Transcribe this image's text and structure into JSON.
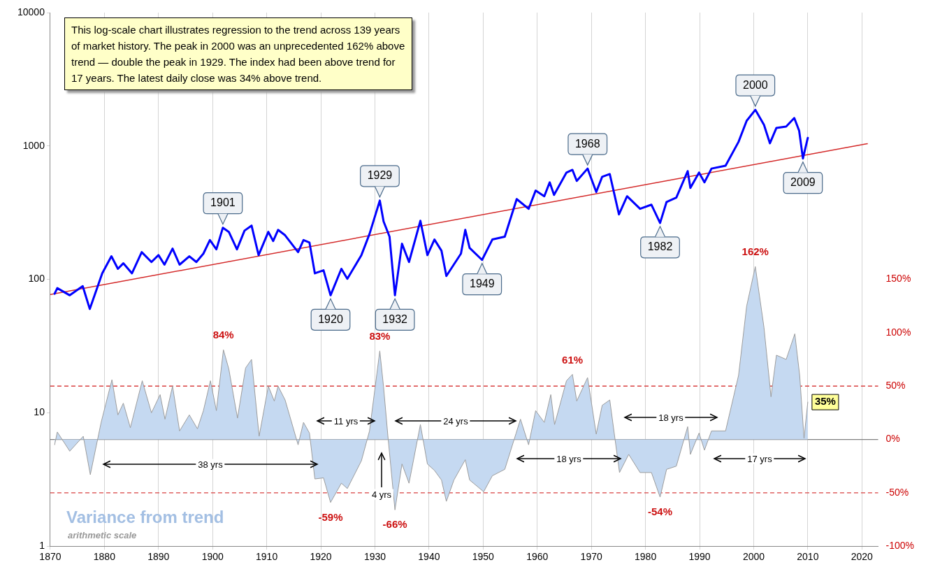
{
  "chart_data": {
    "type": "line",
    "annotations": [
      "This log-scale chart illustrates regression to the trend across 139 years of market history. The peak in 2000 was an unprecedented 162% above trend — double the peak in 1929.  The index had been above trend for 17 years. The latest daily close was 34% above trend.",
      "Variance from trend",
      "arithmetic scale",
      "38 yrs",
      "11 yrs",
      "24 yrs",
      "4 yrs",
      "18 yrs",
      "18 yrs",
      "17 yrs",
      {
        "text": "1901",
        "x": 1901.9,
        "y": 244
      },
      {
        "text": "1920",
        "x": 1921.8,
        "y": 76
      },
      {
        "text": "1929",
        "x": 1930.9,
        "y": 390
      },
      {
        "text": "1932",
        "x": 1933.7,
        "y": 76
      },
      {
        "text": "1949",
        "x": 1949.8,
        "y": 140
      },
      {
        "text": "1968",
        "x": 1969.3,
        "y": 677
      },
      {
        "text": "1982",
        "x": 1982.7,
        "y": 265
      },
      {
        "text": "2000",
        "x": 2000.3,
        "y": 1866
      },
      {
        "text": "2009",
        "x": 2009.1,
        "y": 806
      }
    ],
    "xlim": [
      1870,
      2023
    ],
    "xticks": [
      1870,
      1880,
      1890,
      1900,
      1910,
      1920,
      1930,
      1940,
      1950,
      1960,
      1970,
      1980,
      1990,
      2000,
      2010,
      2020
    ],
    "ylim": [
      1,
      10000
    ],
    "yticks": [
      1,
      10,
      100,
      1000,
      10000
    ],
    "log": "y",
    "y2lim": [
      -100,
      400
    ],
    "y2ticks": [
      {
        "value": -100,
        "label": "-100%"
      },
      {
        "value": -50,
        "label": "-50%"
      },
      {
        "value": 0,
        "label": "0%"
      },
      {
        "value": 50,
        "label": "50%"
      },
      {
        "value": 100,
        "label": "100%"
      },
      {
        "value": 150,
        "label": "150%"
      }
    ],
    "grid": "x",
    "marker": "none",
    "ref_lines": [
      {
        "axis": "y2",
        "value": 0,
        "color": "#808080",
        "line_style": "solid"
      },
      {
        "axis": "y2",
        "value": 50,
        "color": "#d94040",
        "line_style": "dashed"
      },
      {
        "axis": "y2",
        "value": -50,
        "color": "#d94040",
        "line_style": "dashed"
      }
    ],
    "series": [
      {
        "color": "#0000ff",
        "x": [
          1870.8,
          1871.3,
          1873.6,
          1876,
          1877.3,
          1879.6,
          1881.3,
          1882.5,
          1883.5,
          1885.1,
          1886.9,
          1888.7,
          1890,
          1891.1,
          1892.6,
          1893.9,
          1895.7,
          1897,
          1898.3,
          1899.5,
          1900.7,
          1901.9,
          1903,
          1904.5,
          1905.9,
          1907.2,
          1908.5,
          1910.3,
          1911.2,
          1912.1,
          1913.4,
          1915.8,
          1916.8,
          1917.9,
          1918.9,
          1920.5,
          1921.8,
          1923.8,
          1924.9,
          1927.5,
          1929,
          1930.9,
          1931.6,
          1932.7,
          1933.7,
          1935,
          1936.3,
          1938.4,
          1939.7,
          1941,
          1942.3,
          1943.2,
          1945.9,
          1946.7,
          1947.5,
          1949.8,
          1951.7,
          1954,
          1956.2,
          1958.4,
          1959.7,
          1961.3,
          1962.3,
          1963.1,
          1965.4,
          1966.5,
          1967.3,
          1969.3,
          1970.9,
          1972,
          1973.4,
          1975.1,
          1976.6,
          1979,
          1981.1,
          1982.7,
          1983.9,
          1985.7,
          1987.8,
          1988.3,
          1989.9,
          1990.9,
          1992.2,
          1994.8,
          1997.2,
          1998.7,
          2000.3,
          2001.9,
          2003,
          2004.2,
          2006,
          2007.5,
          2008.4,
          2009.1,
          2010
        ],
        "values": [
          78,
          86,
          76,
          89,
          60,
          111,
          149,
          120,
          132,
          111,
          160,
          135,
          152,
          129,
          170,
          129,
          149,
          135,
          156,
          197,
          168,
          244,
          227,
          168,
          232,
          253,
          152,
          227,
          194,
          235,
          214,
          160,
          197,
          189,
          111,
          117,
          76,
          120,
          101,
          152,
          219,
          390,
          272,
          209,
          76,
          185,
          135,
          275,
          152,
          199,
          164,
          106,
          156,
          235,
          172,
          140,
          199,
          209,
          400,
          338,
          463,
          420,
          534,
          430,
          632,
          662,
          547,
          677,
          452,
          588,
          616,
          307,
          420,
          338,
          363,
          265,
          381,
          410,
          648,
          485,
          632,
          534,
          677,
          712,
          1074,
          1545,
          1866,
          1440,
          1048,
          1367,
          1400,
          1620,
          1300,
          806,
          1150
        ]
      },
      {
        "color": "#d42a2a",
        "x": [
          1870,
          2021
        ],
        "values": [
          77,
          1040
        ]
      },
      {
        "type": "area",
        "axis": "y2",
        "color": "#c5d9f1",
        "x": [
          1870.8,
          1871.3,
          1873.6,
          1876.1,
          1877.4,
          1879.4,
          1881.4,
          1882.5,
          1883.5,
          1884.8,
          1887,
          1888.7,
          1890.3,
          1891.2,
          1892.6,
          1893.9,
          1895.7,
          1897.2,
          1898.3,
          1899.6,
          1900.7,
          1902,
          1903,
          1904.6,
          1906.1,
          1907.2,
          1908.6,
          1910.3,
          1911.4,
          1912.1,
          1913.4,
          1915.8,
          1916.8,
          1917.9,
          1918.9,
          1920.5,
          1921.8,
          1923.8,
          1924.9,
          1927.5,
          1929,
          1930.9,
          1931.6,
          1932.4,
          1933.7,
          1935,
          1936.3,
          1938.4,
          1939.7,
          1941,
          1942.3,
          1943.2,
          1944.6,
          1946.7,
          1947.5,
          1950.1,
          1951.7,
          1954,
          1956.1,
          1956.9,
          1958.4,
          1959.7,
          1961.3,
          1962.5,
          1963.2,
          1965.4,
          1966.5,
          1967.3,
          1969.3,
          1970.9,
          1972,
          1973.4,
          1975.2,
          1976.9,
          1979,
          1981.1,
          1982.7,
          1983.9,
          1985.7,
          1987.8,
          1988.3,
          1989.9,
          1990.9,
          1992.2,
          1994.8,
          1997.2,
          1998.7,
          2000.3,
          2001.9,
          2003.2,
          2004.2,
          2006,
          2007.6,
          2008.5,
          2009.3,
          2010
        ],
        "values": [
          -5,
          7,
          -11,
          3,
          -33,
          16,
          56,
          23,
          34,
          11,
          55,
          25,
          42,
          19,
          50,
          8,
          23,
          10,
          27,
          55,
          27,
          84,
          66,
          20,
          67,
          75,
          3,
          50,
          36,
          50,
          37,
          -5,
          16,
          6,
          -37,
          -36,
          -59,
          -41,
          -46,
          -20,
          8,
          83,
          49,
          3,
          -66,
          -23,
          -41,
          14,
          -23,
          -29,
          -38,
          -58,
          -38,
          -19,
          -38,
          -49,
          -34,
          -28,
          6,
          19,
          -5,
          27,
          16,
          42,
          14,
          55,
          61,
          36,
          58,
          5,
          32,
          37,
          -31,
          -14,
          -31,
          -31,
          -54,
          -28,
          -25,
          12,
          -14,
          6,
          -10,
          8,
          8,
          60,
          125,
          162,
          105,
          40,
          79,
          75,
          99,
          60,
          1,
          35
        ],
        "value_labels": [
          null,
          null,
          null,
          null,
          null,
          null,
          null,
          null,
          null,
          null,
          null,
          null,
          null,
          null,
          null,
          null,
          null,
          null,
          null,
          null,
          null,
          "84%",
          null,
          null,
          null,
          null,
          null,
          null,
          null,
          null,
          null,
          null,
          null,
          null,
          null,
          null,
          "-59%",
          null,
          null,
          null,
          null,
          "83%",
          null,
          null,
          "-66%",
          null,
          null,
          null,
          null,
          null,
          null,
          null,
          null,
          null,
          null,
          null,
          null,
          null,
          null,
          null,
          null,
          null,
          null,
          null,
          null,
          null,
          "61%",
          null,
          null,
          null,
          null,
          null,
          null,
          null,
          null,
          null,
          "-54%",
          null,
          null,
          null,
          null,
          null,
          null,
          null,
          null,
          null,
          null,
          "162%",
          null,
          null,
          null,
          null,
          null,
          null,
          null,
          "35%"
        ]
      }
    ]
  }
}
